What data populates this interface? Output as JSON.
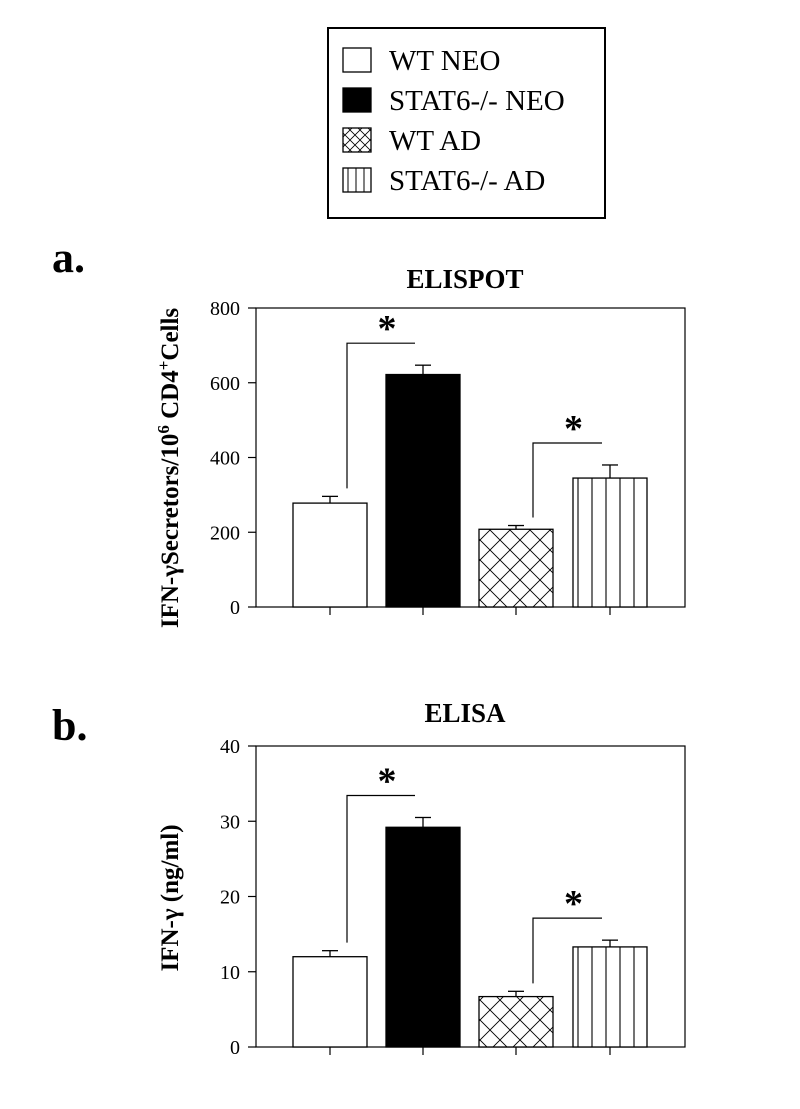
{
  "legend": {
    "entries": [
      {
        "label": "WT NEO",
        "fill": "white"
      },
      {
        "label": "STAT6-/- NEO",
        "fill": "black"
      },
      {
        "label": "WT AD",
        "fill": "crosshatch"
      },
      {
        "label": "STAT6-/- AD",
        "fill": "vertical"
      }
    ]
  },
  "panels": [
    {
      "letter": "a."
    },
    {
      "letter": "b."
    }
  ],
  "significance_marker": "*",
  "chart_data": [
    {
      "type": "bar",
      "title": "ELISPOT",
      "ylabel_main": "IFN-γSecretors/10",
      "ylabel_sup1": "6",
      "ylabel_mid": " CD4",
      "ylabel_sup2": "+",
      "ylabel_end": "Cells",
      "ylim": [
        0,
        800
      ],
      "yticks": [
        0,
        200,
        400,
        600,
        800
      ],
      "categories": [
        "WT NEO",
        "STAT6-/- NEO",
        "WT AD",
        "STAT6-/- AD"
      ],
      "values": [
        278,
        622,
        208,
        345
      ],
      "errors": [
        18,
        25,
        10,
        35
      ],
      "significance": [
        [
          0,
          1
        ],
        [
          2,
          3
        ]
      ]
    },
    {
      "type": "bar",
      "title": "ELISA",
      "ylabel": "IFN-γ (ng/ml)",
      "ylim": [
        0,
        40
      ],
      "yticks": [
        0,
        10,
        20,
        30,
        40
      ],
      "categories": [
        "WT NEO",
        "STAT6-/- NEO",
        "WT AD",
        "STAT6-/- AD"
      ],
      "values": [
        12,
        29.2,
        6.7,
        13.3
      ],
      "errors": [
        0.8,
        1.3,
        0.7,
        0.9
      ],
      "significance": [
        [
          0,
          1
        ],
        [
          2,
          3
        ]
      ]
    }
  ]
}
